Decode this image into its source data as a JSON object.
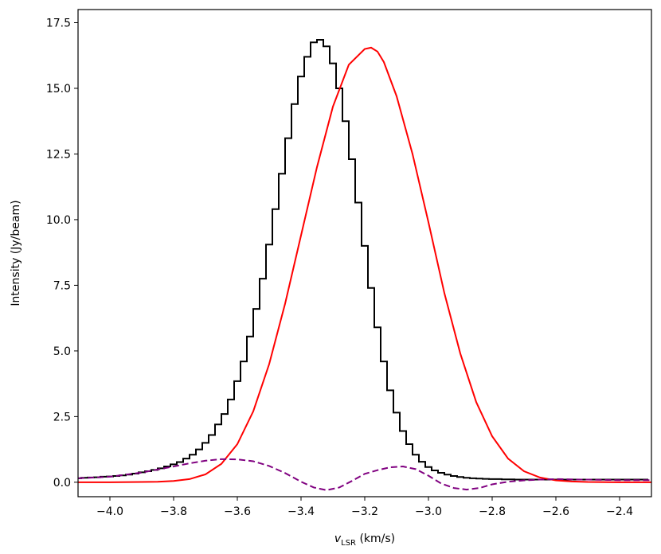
{
  "chart_data": {
    "type": "line",
    "xlabel_main": "v",
    "xlabel_sub": "LSR",
    "xlabel_unit": " (km/s)",
    "ylabel": "Intensity (Jy/beam)",
    "xlim": [
      -4.1,
      -2.3
    ],
    "ylim": [
      -0.55,
      18.0
    ],
    "x_ticks": [
      -4.0,
      -3.8,
      -3.6,
      -3.4,
      -3.2,
      -3.0,
      -2.8,
      -2.6,
      -2.4
    ],
    "x_tick_labels": [
      "−4.0",
      "−3.8",
      "−3.6",
      "−3.4",
      "−3.2",
      "−3.0",
      "−2.8",
      "−2.6",
      "−2.4"
    ],
    "y_ticks": [
      0.0,
      2.5,
      5.0,
      7.5,
      10.0,
      12.5,
      15.0,
      17.5
    ],
    "y_tick_labels": [
      "0.0",
      "2.5",
      "5.0",
      "7.5",
      "10.0",
      "12.5",
      "15.0",
      "17.5"
    ],
    "grid": false,
    "legend": "none",
    "series": [
      {
        "style": "steps",
        "color": "#000000",
        "x": [
          -4.1,
          -4.08,
          -4.06,
          -4.04,
          -4.02,
          -4.0,
          -3.98,
          -3.96,
          -3.94,
          -3.92,
          -3.9,
          -3.88,
          -3.86,
          -3.84,
          -3.82,
          -3.8,
          -3.78,
          -3.76,
          -3.74,
          -3.72,
          -3.7,
          -3.68,
          -3.66,
          -3.64,
          -3.62,
          -3.6,
          -3.58,
          -3.56,
          -3.54,
          -3.52,
          -3.5,
          -3.48,
          -3.46,
          -3.44,
          -3.42,
          -3.4,
          -3.38,
          -3.36,
          -3.34,
          -3.32,
          -3.3,
          -3.28,
          -3.26,
          -3.24,
          -3.22,
          -3.2,
          -3.18,
          -3.16,
          -3.14,
          -3.12,
          -3.1,
          -3.08,
          -3.06,
          -3.04,
          -3.02,
          -3.0,
          -2.98,
          -2.96,
          -2.94,
          -2.92,
          -2.9,
          -2.88,
          -2.86,
          -2.84,
          -2.82,
          -2.8,
          -2.78,
          -2.76,
          -2.74,
          -2.72,
          -2.7,
          -2.68,
          -2.66,
          -2.64,
          -2.62,
          -2.6,
          -2.58,
          -2.56,
          -2.54,
          -2.52,
          -2.5,
          -2.48,
          -2.46,
          -2.44,
          -2.42,
          -2.4,
          -2.38,
          -2.36,
          -2.34,
          -2.32
        ],
        "y": [
          0.15,
          0.17,
          0.18,
          0.19,
          0.21,
          0.22,
          0.24,
          0.26,
          0.29,
          0.33,
          0.38,
          0.42,
          0.47,
          0.53,
          0.6,
          0.68,
          0.77,
          0.9,
          1.05,
          1.25,
          1.5,
          1.8,
          2.2,
          2.6,
          3.15,
          3.85,
          4.6,
          5.55,
          6.6,
          7.75,
          9.05,
          10.4,
          11.75,
          13.1,
          14.4,
          15.45,
          16.2,
          16.75,
          16.85,
          16.6,
          15.95,
          15.0,
          13.75,
          12.3,
          10.65,
          9.0,
          7.4,
          5.9,
          4.6,
          3.5,
          2.65,
          1.95,
          1.45,
          1.05,
          0.78,
          0.58,
          0.45,
          0.36,
          0.29,
          0.24,
          0.2,
          0.17,
          0.15,
          0.14,
          0.13,
          0.12,
          0.12,
          0.11,
          0.11,
          0.1,
          0.1,
          0.1,
          0.1,
          0.1,
          0.1,
          0.1,
          0.1,
          0.1,
          0.1,
          0.1,
          0.1,
          0.1,
          0.1,
          0.1,
          0.1,
          0.1,
          0.1,
          0.1,
          0.1,
          0.1
        ]
      },
      {
        "style": "solid",
        "color": "#ff0000",
        "x": [
          -4.1,
          -4.0,
          -3.9,
          -3.85,
          -3.8,
          -3.75,
          -3.7,
          -3.65,
          -3.6,
          -3.55,
          -3.5,
          -3.45,
          -3.4,
          -3.35,
          -3.3,
          -3.25,
          -3.2,
          -3.18,
          -3.16,
          -3.14,
          -3.1,
          -3.05,
          -3.0,
          -2.95,
          -2.9,
          -2.85,
          -2.8,
          -2.75,
          -2.7,
          -2.65,
          -2.6,
          -2.55,
          -2.5,
          -2.4,
          -2.3
        ],
        "y": [
          0.0,
          0.0,
          0.01,
          0.02,
          0.05,
          0.12,
          0.3,
          0.7,
          1.45,
          2.7,
          4.5,
          6.8,
          9.4,
          12.0,
          14.3,
          15.9,
          16.5,
          16.55,
          16.4,
          16.0,
          14.7,
          12.5,
          9.9,
          7.2,
          4.9,
          3.05,
          1.75,
          0.9,
          0.42,
          0.18,
          0.07,
          0.03,
          0.01,
          0.0,
          0.0
        ]
      },
      {
        "style": "dashed",
        "color": "#800080",
        "x": [
          -4.1,
          -4.0,
          -3.9,
          -3.8,
          -3.75,
          -3.7,
          -3.65,
          -3.6,
          -3.55,
          -3.5,
          -3.45,
          -3.4,
          -3.36,
          -3.32,
          -3.28,
          -3.24,
          -3.2,
          -3.16,
          -3.12,
          -3.08,
          -3.04,
          -3.0,
          -2.96,
          -2.92,
          -2.88,
          -2.84,
          -2.8,
          -2.75,
          -2.7,
          -2.65,
          -2.6,
          -2.55,
          -2.5,
          -2.4,
          -2.3
        ],
        "y": [
          0.15,
          0.21,
          0.37,
          0.6,
          0.72,
          0.82,
          0.88,
          0.87,
          0.8,
          0.62,
          0.35,
          0.02,
          -0.2,
          -0.3,
          -0.2,
          0.05,
          0.32,
          0.46,
          0.57,
          0.6,
          0.5,
          0.25,
          -0.05,
          -0.22,
          -0.28,
          -0.22,
          -0.08,
          0.02,
          0.07,
          0.1,
          0.12,
          0.11,
          0.1,
          0.08,
          0.08
        ]
      }
    ]
  }
}
